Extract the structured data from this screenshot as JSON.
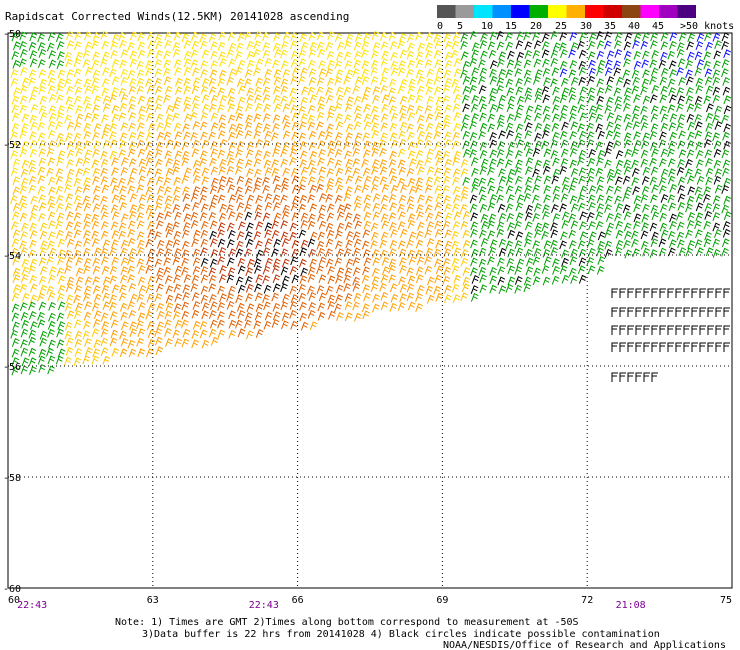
{
  "title": "Rapidscat Corrected Winds(12.5KM) 20141028 ascending",
  "legend": {
    "colors": [
      "#555555",
      "#9a9a9a",
      "#00e5ff",
      "#0090ff",
      "#0000ff",
      "#00b000",
      "#ffff00",
      "#ffb000",
      "#ff0000",
      "#d00000",
      "#8b4513",
      "#ff00ff",
      "#a000c0",
      "#4b0082"
    ],
    "labels": [
      "0",
      "5",
      "10",
      "15",
      "20",
      "25",
      "30",
      "35",
      "40",
      "45",
      ">50 knots"
    ]
  },
  "chart_data": {
    "type": "map",
    "x_ticks": [
      "60",
      "63",
      "66",
      "69",
      "72",
      "75"
    ],
    "y_ticks": [
      "-50",
      "-52",
      "-54",
      "-56",
      "-58",
      "-60"
    ],
    "xlim": [
      60,
      75
    ],
    "ylim": [
      -60,
      -50
    ],
    "grid": true,
    "swath_times": [
      "22:43",
      "22:43",
      "21:08"
    ],
    "swath_time_lon": [
      60.5,
      65.3,
      72.9
    ],
    "swath_edge": {
      "top_lat": -50.0,
      "bottom_lat_at_60": -56.2,
      "bottom_lat_at_75": -54.0
    }
  },
  "notes": [
    "Note: 1) Times are GMT 2)Times along bottom correspond to measurement at -50S",
    "3)Data buffer is 22 hrs from 20141028 4) Black circles indicate possible contamination",
    "NOAA/NESDIS/Office of Research and Applications"
  ]
}
